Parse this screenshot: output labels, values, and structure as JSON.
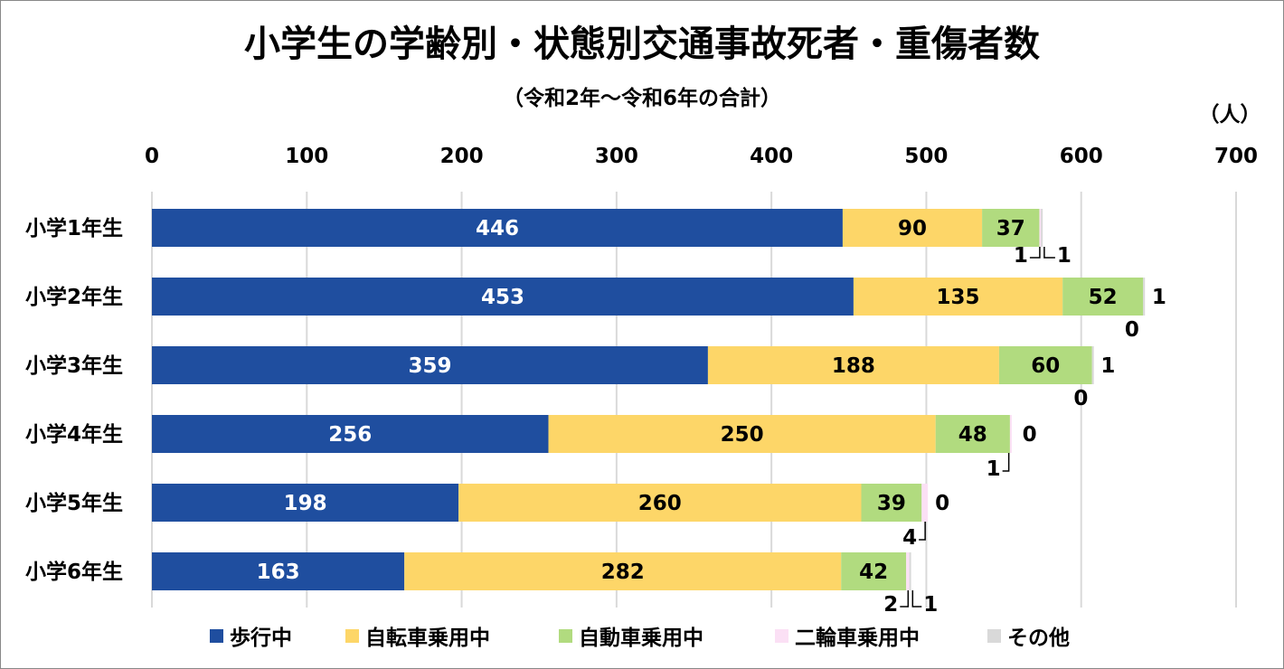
{
  "chart_data": {
    "type": "bar",
    "orientation": "horizontal",
    "stacked": true,
    "title": "小学生の学齢別・状態別交通事故死者・重傷者数",
    "subtitle": "（令和2年～令和6年の合計）",
    "unit_label": "（人）",
    "categories": [
      "小学1年生",
      "小学2年生",
      "小学3年生",
      "小学4年生",
      "小学5年生",
      "小学6年生"
    ],
    "series": [
      {
        "name": "歩行中",
        "color": "#1f4e9f",
        "values": [
          446,
          453,
          359,
          256,
          198,
          163
        ]
      },
      {
        "name": "自転車乗用中",
        "color": "#fdd668",
        "values": [
          90,
          135,
          188,
          250,
          260,
          282
        ]
      },
      {
        "name": "自動車乗用中",
        "color": "#b1db7f",
        "values": [
          37,
          52,
          60,
          48,
          39,
          42
        ]
      },
      {
        "name": "二輪車乗用中",
        "color": "#fbe0f5",
        "values": [
          1,
          0,
          0,
          1,
          4,
          2
        ]
      },
      {
        "name": "その他",
        "color": "#d9d9d9",
        "values": [
          1,
          1,
          1,
          0,
          0,
          1
        ]
      }
    ],
    "xlim": [
      0,
      700
    ],
    "xticks": [
      0,
      100,
      200,
      300,
      400,
      500,
      600,
      700
    ],
    "grid": true,
    "legend_position": "bottom"
  }
}
